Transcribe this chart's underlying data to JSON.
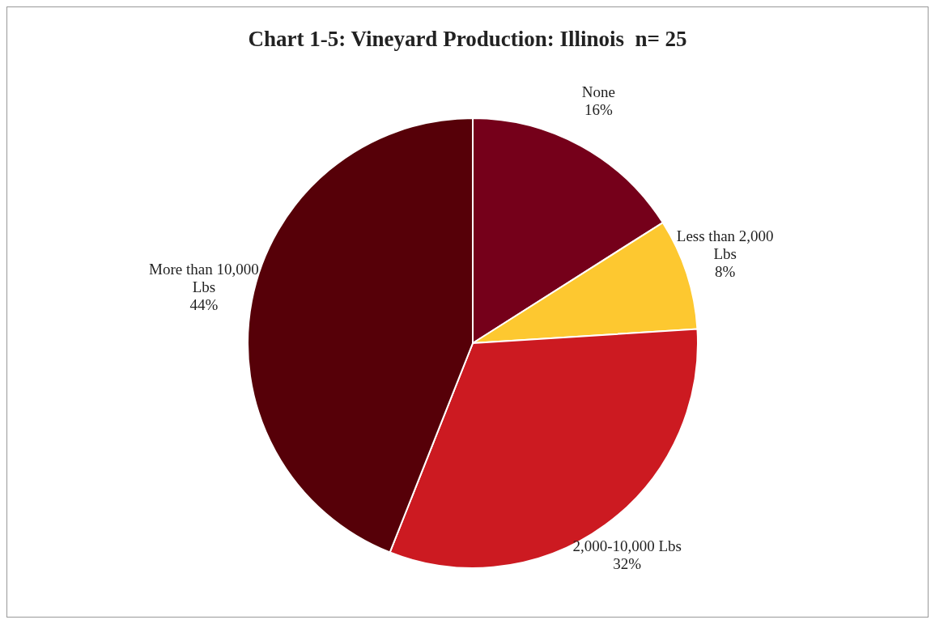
{
  "chart_data": {
    "type": "pie",
    "title": "Chart 1-5: Vineyard Production: Illinois  n= 25",
    "categories": [
      "None",
      "Less than 2,000 Lbs",
      "2,000-10,000 Lbs",
      "More than 10,000 Lbs"
    ],
    "values": [
      16,
      8,
      32,
      44
    ],
    "colors": [
      "#75001a",
      "#fdc830",
      "#cc1a21",
      "#560008"
    ],
    "value_labels": [
      "16%",
      "8%",
      "32%",
      "44%"
    ],
    "legend": false
  }
}
